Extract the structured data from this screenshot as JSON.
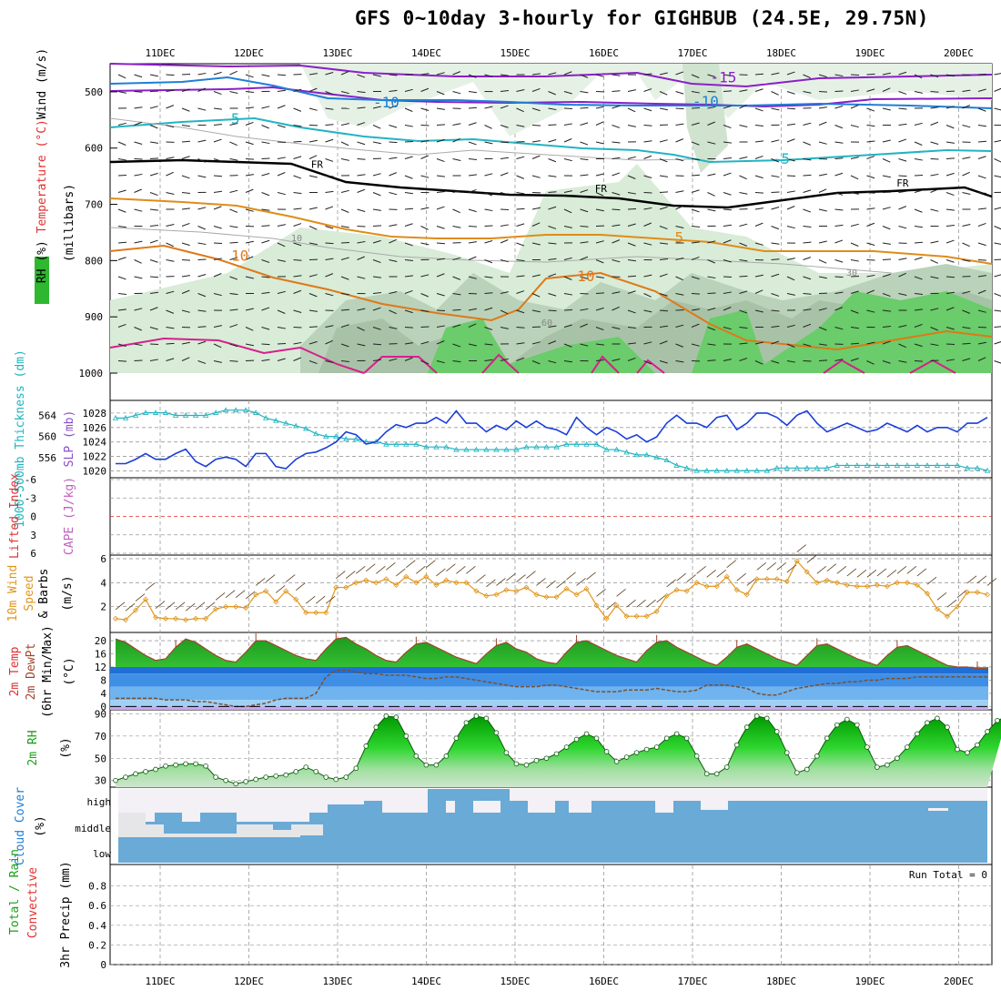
{
  "title": "GFS 0~10day 3-hourly for GIGHBUB (24.5E, 29.75N)",
  "colors": {
    "purple": "#8a1fc8",
    "blue": "#1e7fd6",
    "cyan": "#22b3c3",
    "orange": "#e08c18",
    "darkorange": "#e07818",
    "magenta": "#d81e8c",
    "slp": "#1a3ed8",
    "thick": "#1fb4c0",
    "wind10": "#e0951c",
    "temp_fill": "#2cae2c",
    "rh_fill": "#18d818",
    "cloud": "#6aaad6",
    "grid": "#999999"
  },
  "chart_data": [
    {
      "type": "contour",
      "panel": "upper-air",
      "ylabel_parts": [
        "RH (%)",
        "Temperature (°C)",
        "Wind (m/s)"
      ],
      "ylabel2": "(millibars)",
      "y_ticks": [
        500,
        600,
        700,
        800,
        900,
        1000
      ],
      "ylim": [
        450,
        1000
      ],
      "x_labels": [
        "11DEC",
        "12DEC",
        "13DEC",
        "14DEC",
        "15DEC",
        "16DEC",
        "17DEC",
        "18DEC",
        "19DEC",
        "20DEC"
      ],
      "contour_labels": [
        {
          "text": "-15",
          "color": "purple",
          "day": 6.2,
          "p": 483
        },
        {
          "text": "-10",
          "color": "blue",
          "day": 2.4,
          "p": 528
        },
        {
          "text": "-10",
          "color": "blue",
          "day": 6.0,
          "p": 526
        },
        {
          "text": "-5",
          "color": "cyan",
          "day": 0.7,
          "p": 557
        },
        {
          "text": "-5",
          "color": "cyan",
          "day": 6.9,
          "p": 628
        },
        {
          "text": "FR",
          "color": "black",
          "day": 1.7,
          "p": 635
        },
        {
          "text": "FR",
          "color": "black",
          "day": 4.9,
          "p": 678
        },
        {
          "text": "FR",
          "color": "black",
          "day": 8.3,
          "p": 668
        },
        {
          "text": "5",
          "color": "orange",
          "day": 5.8,
          "p": 768
        },
        {
          "text": "10",
          "color": "darkorange",
          "day": 0.8,
          "p": 800
        },
        {
          "text": "10",
          "color": "darkorange",
          "day": 4.7,
          "p": 837
        }
      ],
      "rh_labels": [
        "10",
        "30",
        "60"
      ]
    },
    {
      "type": "line",
      "panel": "slp-thickness",
      "ylabel_left": "1000-500mb Thickness (dm)",
      "ylabel_right": "SLP (mb)",
      "thickness_ticks": [
        556,
        560,
        564
      ],
      "slp_ticks": [
        1020,
        1022,
        1024,
        1026,
        1028
      ],
      "series": [
        {
          "name": "SLP (mb)",
          "color": "slp",
          "values": [
            1021.0,
            1021.0,
            1021.6,
            1022.4,
            1021.6,
            1021.6,
            1022.4,
            1023.0,
            1021.3,
            1020.6,
            1021.6,
            1021.9,
            1021.6,
            1020.6,
            1022.4,
            1022.4,
            1020.6,
            1020.3,
            1021.6,
            1022.4,
            1022.6,
            1023.2,
            1024.0,
            1025.4,
            1025.0,
            1023.7,
            1024.0,
            1025.4,
            1026.4,
            1026.0,
            1026.6,
            1026.6,
            1027.4,
            1026.6,
            1028.3,
            1026.6,
            1026.6,
            1025.4,
            1026.3,
            1025.7,
            1026.9,
            1026.0,
            1026.9,
            1026.0,
            1025.7,
            1025.0,
            1027.4,
            1026.0,
            1025.0,
            1026.0,
            1025.4,
            1024.4,
            1025.0,
            1024.0,
            1024.7,
            1026.6,
            1027.7,
            1026.6,
            1026.6,
            1026.0,
            1027.4,
            1027.7,
            1025.7,
            1026.6,
            1028.0,
            1028.0,
            1027.4,
            1026.3,
            1027.7,
            1028.3,
            1026.6,
            1025.4,
            1026.0,
            1026.6,
            1026.0,
            1025.4,
            1025.7,
            1026.6,
            1026.0,
            1025.4,
            1026.3,
            1025.4,
            1026.0,
            1026.0,
            1025.4,
            1026.6,
            1026.6,
            1027.4
          ]
        },
        {
          "name": "1000-500mb Thickness (dm)",
          "color": "thick",
          "values": [
            563.5,
            563.5,
            564.0,
            564.5,
            564.5,
            564.5,
            564.0,
            564.0,
            564.0,
            564.0,
            564.5,
            565.0,
            565.0,
            565.0,
            564.5,
            563.5,
            563.0,
            562.5,
            562.0,
            561.5,
            560.5,
            560.0,
            560.0,
            559.5,
            559.5,
            559.0,
            559.0,
            558.5,
            558.5,
            558.5,
            558.5,
            558.0,
            558.0,
            558.0,
            557.5,
            557.5,
            557.5,
            557.5,
            557.5,
            557.5,
            557.5,
            558.0,
            558.0,
            558.0,
            558.0,
            558.5,
            558.5,
            558.5,
            558.5,
            557.5,
            557.5,
            557.0,
            556.5,
            556.5,
            556.0,
            555.5,
            554.5,
            554.0,
            553.5,
            553.5,
            553.5,
            553.5,
            553.5,
            553.5,
            553.5,
            553.5,
            554.0,
            554.0,
            554.0,
            554.0,
            554.0,
            554.0,
            554.5,
            554.5,
            554.5,
            554.5,
            554.5,
            554.5,
            554.5,
            554.5,
            554.5,
            554.5,
            554.5,
            554.5,
            554.5,
            554.0,
            554.0,
            553.5
          ]
        }
      ]
    },
    {
      "type": "line",
      "panel": "instability",
      "ylabel_left": "Lifted Index",
      "ylabel_right": "CAPE (J/kg)",
      "li_ticks": [
        "-6",
        "-3",
        "0",
        "3",
        "6"
      ]
    },
    {
      "type": "line",
      "panel": "wind10m",
      "ylabel": [
        "10m Wind",
        "Speed",
        "& Barbs"
      ],
      "yunit": "(m/s)",
      "y_ticks": [
        2,
        4,
        6
      ],
      "ylim": [
        0,
        6
      ],
      "series": [
        {
          "name": "10m Wind Speed",
          "color": "wind10",
          "values": [
            1.0,
            0.9,
            1.7,
            2.6,
            1.1,
            1.0,
            1.0,
            0.9,
            1.0,
            1.0,
            1.8,
            2.0,
            2.0,
            1.9,
            3.0,
            3.3,
            2.4,
            3.3,
            2.6,
            1.5,
            1.5,
            1.5,
            3.6,
            3.6,
            4.0,
            4.2,
            4.0,
            4.3,
            3.8,
            4.5,
            4.0,
            4.5,
            3.8,
            4.2,
            4.0,
            4.0,
            3.3,
            2.9,
            3.0,
            3.4,
            3.3,
            3.6,
            3.0,
            2.8,
            2.8,
            3.5,
            3.0,
            3.5,
            2.1,
            1.0,
            2.1,
            1.2,
            1.2,
            1.2,
            1.6,
            2.9,
            3.4,
            3.3,
            4.0,
            3.7,
            3.7,
            4.5,
            3.4,
            3.0,
            4.3,
            4.3,
            4.3,
            4.1,
            5.8,
            4.9,
            4.0,
            4.2,
            4.0,
            3.8,
            3.7,
            3.7,
            3.8,
            3.7,
            4.0,
            4.0,
            3.8,
            3.1,
            1.8,
            1.2,
            2.0,
            3.2,
            3.2,
            3.0
          ]
        }
      ]
    },
    {
      "type": "area",
      "panel": "temperature",
      "ylabel": [
        "2m Temp",
        "2m DewPt",
        "(6hr Min/Max)"
      ],
      "yunit": "(°C)",
      "y_ticks": [
        0,
        4,
        8,
        12,
        16,
        20
      ],
      "ylim": [
        -1,
        22
      ],
      "series": [
        {
          "name": "2m Temp",
          "values": [
            20.5,
            19.5,
            17.5,
            15.5,
            14.0,
            14.5,
            18.0,
            20.5,
            19.5,
            17.5,
            15.5,
            14.0,
            13.5,
            16.5,
            20.0,
            20.0,
            18.5,
            17.0,
            15.5,
            14.5,
            14.0,
            17.5,
            20.5,
            21.0,
            19.0,
            17.5,
            15.5,
            14.0,
            13.5,
            16.5,
            19.0,
            19.5,
            18.0,
            16.5,
            15.0,
            14.0,
            13.0,
            16.0,
            18.5,
            19.5,
            17.5,
            16.5,
            14.5,
            13.5,
            13.0,
            16.5,
            19.5,
            20.0,
            18.5,
            17.0,
            15.5,
            14.5,
            13.5,
            17.0,
            19.5,
            20.0,
            18.0,
            16.5,
            15.0,
            13.5,
            12.5,
            15.0,
            18.0,
            19.0,
            17.5,
            16.0,
            14.5,
            13.5,
            12.5,
            15.5,
            18.5,
            19.0,
            17.5,
            16.0,
            14.5,
            13.5,
            12.5,
            15.5,
            18.0,
            18.5,
            17.0,
            15.5,
            14.0,
            12.5,
            12.0,
            12.0,
            11.5,
            11.5
          ]
        },
        {
          "name": "2m DewPt",
          "values": [
            2.5,
            2.5,
            2.5,
            2.5,
            2.5,
            2.0,
            2.0,
            2.0,
            1.5,
            1.5,
            1.0,
            0.5,
            0.0,
            0.0,
            0.5,
            1.0,
            2.0,
            2.5,
            2.5,
            2.5,
            4.0,
            9.0,
            11.0,
            11.0,
            10.5,
            10.0,
            10.0,
            9.5,
            9.5,
            9.5,
            9.0,
            8.5,
            8.5,
            9.0,
            9.0,
            8.5,
            8.0,
            7.5,
            7.0,
            6.5,
            6.0,
            6.0,
            6.0,
            6.5,
            6.5,
            6.0,
            5.5,
            5.0,
            4.5,
            4.5,
            4.5,
            5.0,
            5.0,
            5.0,
            5.5,
            5.0,
            4.5,
            4.5,
            5.0,
            6.5,
            6.5,
            6.5,
            6.0,
            5.5,
            4.0,
            3.5,
            3.5,
            4.5,
            5.5,
            6.0,
            6.5,
            7.0,
            7.0,
            7.5,
            7.5,
            8.0,
            8.0,
            8.5,
            8.5,
            8.5,
            9.0,
            9.0,
            9.0,
            9.0,
            9.0,
            9.0,
            9.0,
            9.0
          ]
        }
      ]
    },
    {
      "type": "area",
      "panel": "rh2m",
      "ylabel": "2m RH",
      "yunit": "(%)",
      "y_ticks": [
        30,
        50,
        70,
        90
      ],
      "ylim": [
        25,
        92
      ],
      "series": [
        {
          "name": "2m RH",
          "values": [
            30,
            33,
            36,
            38,
            40,
            43,
            44,
            45,
            45,
            43,
            33,
            30,
            27,
            29,
            31,
            33,
            34,
            35,
            38,
            42,
            38,
            33,
            31,
            33,
            41,
            61,
            78,
            88,
            87,
            70,
            52,
            44,
            44,
            52,
            68,
            82,
            88,
            86,
            73,
            55,
            45,
            44,
            48,
            50,
            54,
            60,
            67,
            72,
            68,
            56,
            47,
            51,
            55,
            58,
            60,
            68,
            72,
            68,
            52,
            36,
            36,
            42,
            62,
            78,
            88,
            86,
            74,
            55,
            37,
            40,
            52,
            68,
            80,
            85,
            80,
            60,
            42,
            44,
            50,
            60,
            72,
            82,
            86,
            78,
            58,
            55,
            62,
            74,
            84,
            88
          ]
        }
      ]
    },
    {
      "type": "heatmap",
      "panel": "cloud",
      "ylabel": "Cloud Cover",
      "yunit": "(%)",
      "y_ticks": [
        "high",
        "middle",
        "low"
      ]
    },
    {
      "type": "bar",
      "panel": "precip",
      "ylabel_left": [
        "Total / Rain",
        "Convective"
      ],
      "ylabel": "3hr Precip (mm)",
      "y_ticks": [
        0,
        0.2,
        0.4,
        0.6,
        0.8
      ],
      "ylim": [
        0,
        1
      ],
      "annotation": "Run Total = 0",
      "values": []
    }
  ]
}
